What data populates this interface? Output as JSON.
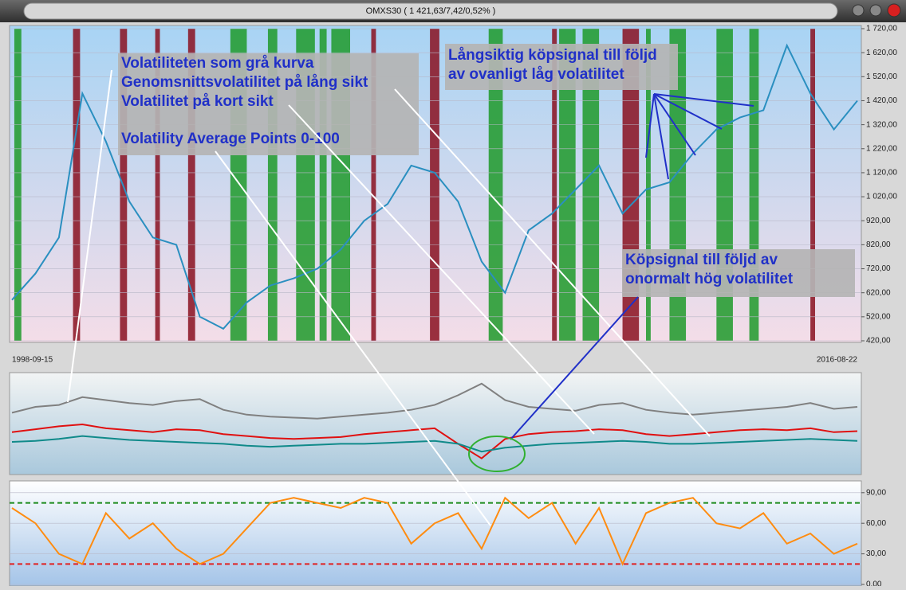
{
  "window": {
    "title": "OMXS30 ( 1 421,63/7,42/0,52% )"
  },
  "annotations": [
    "Volatiliteten som grå kurva",
    "Genomsnittsvolatilitet på lång sikt",
    "Volatilitet på kort sikt",
    "Volatility Average Points 0-100",
    "Långsiktig köpsignal till följd",
    "av ovanligt låg volatilitet",
    "Köpsignal till följd av",
    "onormalt hög volatilitet"
  ],
  "chart_data": [
    {
      "type": "line",
      "categories": [
        "1998-09-15",
        null,
        null,
        null,
        null,
        null,
        null,
        null,
        null,
        null,
        null,
        null,
        null,
        null,
        null,
        null,
        null,
        null,
        null,
        null,
        null,
        null,
        null,
        null,
        null,
        null,
        null,
        null,
        null,
        null,
        null,
        null,
        null,
        null,
        null,
        null,
        "2016-08-22"
      ],
      "series": [
        {
          "color": "#2a8fc0",
          "values": [
            590,
            700,
            850,
            1450,
            1250,
            1000,
            850,
            820,
            520,
            470,
            580,
            650,
            680,
            720,
            800,
            920,
            990,
            1150,
            1120,
            1000,
            750,
            620,
            880,
            950,
            1050,
            1150,
            950,
            1050,
            1080,
            1200,
            1300,
            1350,
            1380,
            1650,
            1450,
            1300,
            1420
          ]
        }
      ],
      "bands": [
        {
          "color": "#1f9a2a",
          "ranges": [
            [
              0.1,
              0.4
            ],
            [
              9.3,
              10.0
            ],
            [
              10.9,
              11.3
            ],
            [
              12.1,
              12.9
            ],
            [
              13.1,
              13.4
            ],
            [
              13.6,
              14.4
            ],
            [
              20.3,
              20.9
            ],
            [
              23.3,
              24.0
            ],
            [
              24.3,
              25.0
            ],
            [
              27.0,
              27.2
            ],
            [
              28.0,
              28.7
            ],
            [
              30.0,
              30.7
            ],
            [
              31.4,
              31.8
            ]
          ]
        },
        {
          "color": "#8a1020",
          "ranges": [
            [
              2.6,
              2.9
            ],
            [
              4.6,
              4.9
            ],
            [
              6.1,
              6.3
            ],
            [
              7.5,
              7.8
            ],
            [
              15.3,
              15.5
            ],
            [
              17.8,
              18.2
            ],
            [
              23.0,
              23.2
            ],
            [
              26.0,
              26.7
            ],
            [
              34.0,
              34.2
            ]
          ]
        }
      ],
      "ylim": [
        420,
        1720
      ],
      "yticks": [
        {
          "value": 420,
          "label": "420,00"
        },
        {
          "value": 520,
          "label": "520,00"
        },
        {
          "value": 620,
          "label": "620,00"
        },
        {
          "value": 720,
          "label": "720,00"
        },
        {
          "value": 820,
          "label": "820,00"
        },
        {
          "value": 920,
          "label": "920,00"
        },
        {
          "value": 1020,
          "label": "1 020,00"
        },
        {
          "value": 1120,
          "label": "1 120,00"
        },
        {
          "value": 1220,
          "label": "1 220,00"
        },
        {
          "value": 1320,
          "label": "1 320,00"
        },
        {
          "value": 1420,
          "label": "1 420,00"
        },
        {
          "value": 1520,
          "label": "1 520,00"
        },
        {
          "value": 1620,
          "label": "1 620,00"
        },
        {
          "value": 1720,
          "label": "1 720,00"
        }
      ],
      "grid": true
    },
    {
      "type": "line",
      "series": [
        {
          "color": "#808080",
          "values": [
            62,
            68,
            70,
            78,
            75,
            72,
            70,
            74,
            76,
            65,
            60,
            58,
            57,
            56,
            58,
            60,
            62,
            65,
            70,
            80,
            92,
            75,
            68,
            66,
            64,
            70,
            72,
            65,
            62,
            60,
            62,
            64,
            66,
            68,
            72,
            66,
            68
          ]
        },
        {
          "color": "#e01010",
          "values": [
            42,
            45,
            48,
            50,
            46,
            44,
            42,
            45,
            44,
            40,
            38,
            36,
            35,
            36,
            37,
            40,
            42,
            44,
            46,
            30,
            15,
            35,
            40,
            42,
            43,
            45,
            44,
            40,
            38,
            40,
            42,
            44,
            45,
            44,
            46,
            42,
            43
          ]
        },
        {
          "color": "#108a8a",
          "values": [
            32,
            33,
            35,
            38,
            36,
            34,
            33,
            32,
            31,
            30,
            28,
            27,
            28,
            29,
            30,
            30,
            31,
            32,
            33,
            30,
            22,
            26,
            28,
            30,
            31,
            32,
            33,
            32,
            30,
            30,
            31,
            32,
            33,
            34,
            35,
            34,
            33
          ]
        }
      ],
      "ylim": [
        0,
        100
      ]
    },
    {
      "type": "line",
      "series": [
        {
          "color": "#ff8c10",
          "values": [
            75,
            60,
            30,
            20,
            70,
            45,
            60,
            35,
            20,
            30,
            55,
            80,
            85,
            80,
            75,
            85,
            80,
            40,
            60,
            70,
            35,
            85,
            65,
            80,
            40,
            75,
            20,
            70,
            80,
            85,
            60,
            55,
            70,
            40,
            50,
            30,
            40
          ]
        }
      ],
      "thresholds": [
        {
          "value": 80,
          "color": "#1a8a1a"
        },
        {
          "value": 20,
          "color": "#e02020"
        }
      ],
      "ylim": [
        0,
        100
      ],
      "yticks": [
        {
          "value": 0,
          "label": "0,00"
        },
        {
          "value": 30,
          "label": "30,00"
        },
        {
          "value": 60,
          "label": "60,00"
        },
        {
          "value": 90,
          "label": "90,00"
        }
      ],
      "grid": true
    }
  ]
}
